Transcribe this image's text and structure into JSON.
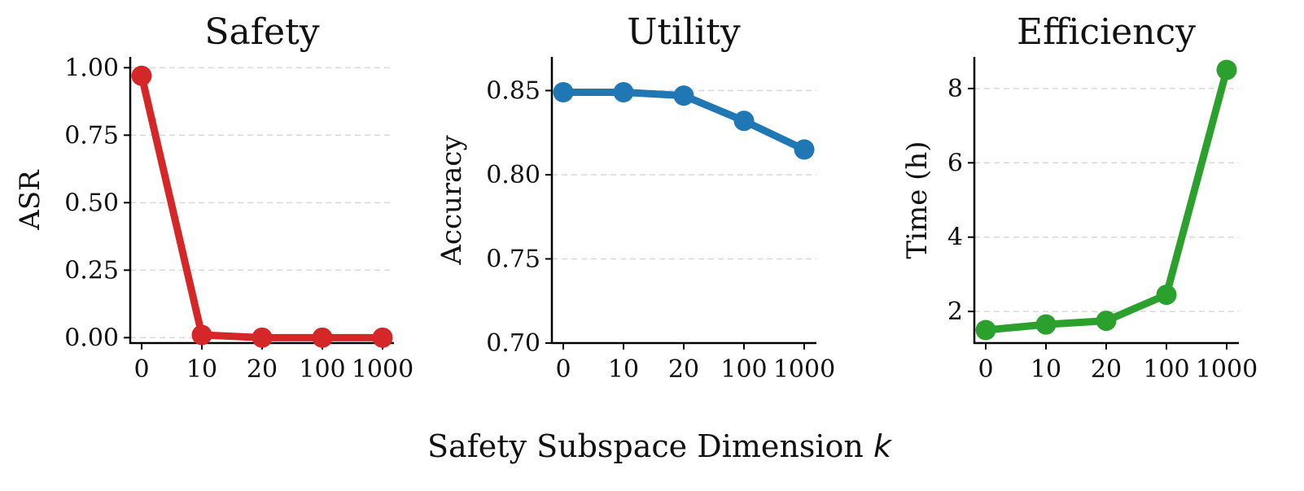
{
  "figure": {
    "shared_xlabel": "Safety Subspace Dimension",
    "shared_xlabel_var": "k"
  },
  "chart_data": [
    {
      "type": "line",
      "title": "Safety",
      "xlabel": "",
      "ylabel": "ASR",
      "categories": [
        "0",
        "10",
        "20",
        "100",
        "1000"
      ],
      "series": [
        {
          "values": [
            0.97,
            0.01,
            0.0,
            0.0,
            0.0
          ],
          "color": "#d62728"
        }
      ],
      "ylim": [
        -0.02,
        1.04
      ],
      "yticks": [
        0.0,
        0.25,
        0.5,
        0.75,
        1.0
      ],
      "ytick_labels": [
        "0.00",
        "0.25",
        "0.50",
        "0.75",
        "1.00"
      ],
      "grid": "y-dashed"
    },
    {
      "type": "line",
      "title": "Utility",
      "xlabel": "",
      "ylabel": "Accuracy",
      "categories": [
        "0",
        "10",
        "20",
        "100",
        "1000"
      ],
      "series": [
        {
          "values": [
            0.849,
            0.849,
            0.847,
            0.832,
            0.815
          ],
          "color": "#1f77b4"
        }
      ],
      "ylim": [
        0.7,
        0.87
      ],
      "yticks": [
        0.7,
        0.75,
        0.8,
        0.85
      ],
      "ytick_labels": [
        "0.70",
        "0.75",
        "0.80",
        "0.85"
      ],
      "grid": "y-dashed"
    },
    {
      "type": "line",
      "title": "Efficiency",
      "xlabel": "",
      "ylabel": "Time (h)",
      "categories": [
        "0",
        "10",
        "20",
        "100",
        "1000"
      ],
      "series": [
        {
          "values": [
            1.5,
            1.65,
            1.75,
            2.45,
            8.5
          ],
          "color": "#2ca02c"
        }
      ],
      "ylim": [
        1.15,
        8.85
      ],
      "yticks": [
        2,
        4,
        6,
        8
      ],
      "ytick_labels": [
        "2",
        "4",
        "6",
        "8"
      ],
      "grid": "y-dashed"
    }
  ]
}
